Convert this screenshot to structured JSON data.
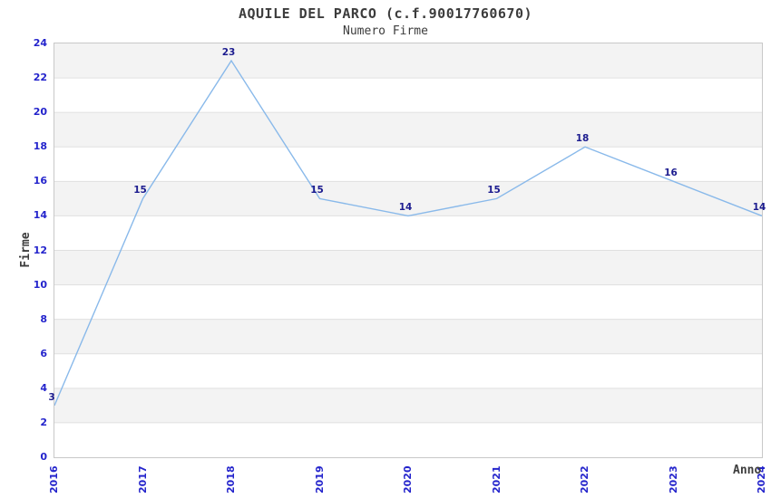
{
  "header": {
    "title": "AQUILE DEL PARCO (c.f.90017760670)",
    "subtitle": "Numero Firme"
  },
  "axes": {
    "y_label": "Firme",
    "x_label": "Anno"
  },
  "colors": {
    "line": "#89b9ea",
    "tick_label": "#2424cc",
    "data_label": "#1c1c8f",
    "band": "#f3f3f3",
    "gridline": "#e0e0e0",
    "plot_border": "#c8c8c8",
    "title_text": "#3c3c3c"
  },
  "chart_data": {
    "type": "line",
    "title": "AQUILE DEL PARCO (c.f.90017760670)",
    "subtitle": "Numero Firme",
    "xlabel": "Anno",
    "ylabel": "Firme",
    "categories": [
      "2016",
      "2017",
      "2018",
      "2019",
      "2020",
      "2021",
      "2022",
      "2023",
      "2024"
    ],
    "series": [
      {
        "name": "Numero Firme",
        "values": [
          3,
          15,
          23,
          15,
          14,
          15,
          18,
          16,
          14
        ]
      }
    ],
    "yticks": [
      0,
      2,
      4,
      6,
      8,
      10,
      12,
      14,
      16,
      18,
      20,
      22,
      24
    ],
    "ylim": [
      0,
      24
    ],
    "grid": "horizontal-bands-alternating",
    "legend": "none",
    "point_labels": true,
    "markers": "none"
  }
}
